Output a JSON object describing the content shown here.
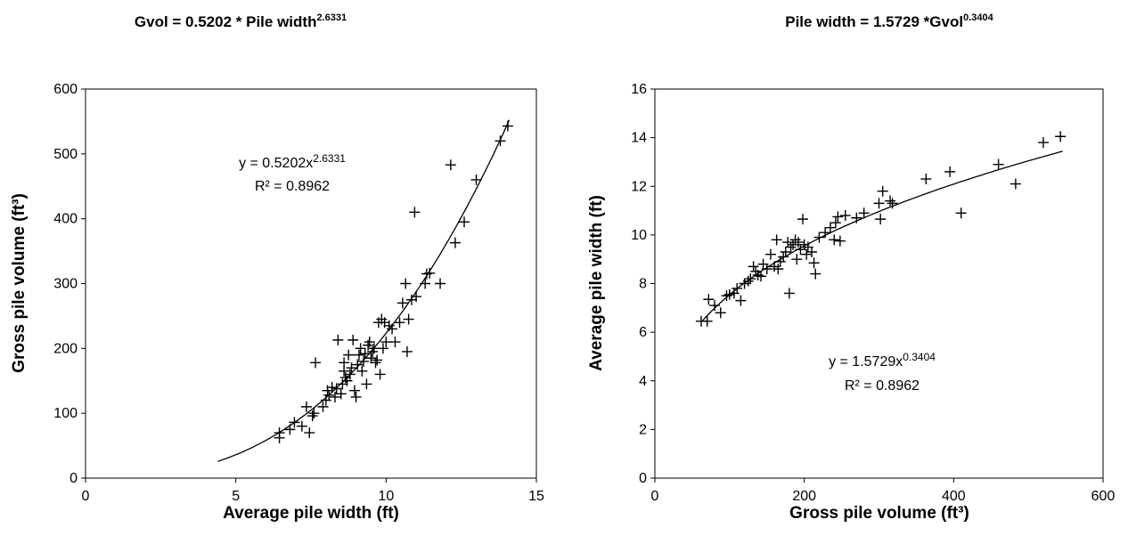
{
  "chart_data": [
    {
      "type": "scatter",
      "title_prefix": "Gvol = 0.5202 * Pile width",
      "title_exponent": "2.6331",
      "xlabel": "Average pile width (ft)",
      "ylabel": "Gross pile volume (ft³)",
      "xlim": [
        0,
        15
      ],
      "ylim": [
        0,
        600
      ],
      "xticks": [
        0,
        5,
        10,
        15
      ],
      "yticks": [
        0,
        100,
        200,
        300,
        400,
        500,
        600
      ],
      "grid": false,
      "marker": "+",
      "equation_text": "y = 0.5202x",
      "equation_exponent": "2.6331",
      "r2_text": "R² = 0.8962",
      "trendline": {
        "form": "power",
        "a": 0.5202,
        "b": 2.6331,
        "x_range": [
          4.4,
          14.1
        ]
      },
      "points": [
        [
          6.45,
          62
        ],
        [
          6.45,
          70
        ],
        [
          6.8,
          75
        ],
        [
          6.95,
          86
        ],
        [
          7.2,
          80
        ],
        [
          7.35,
          110
        ],
        [
          7.45,
          70
        ],
        [
          7.55,
          96
        ],
        [
          7.6,
          100
        ],
        [
          7.65,
          178
        ],
        [
          7.9,
          110
        ],
        [
          8.0,
          120
        ],
        [
          8.05,
          135
        ],
        [
          8.1,
          128
        ],
        [
          8.2,
          140
        ],
        [
          8.3,
          125
        ],
        [
          8.35,
          138
        ],
        [
          8.4,
          213
        ],
        [
          8.5,
          130
        ],
        [
          8.55,
          145
        ],
        [
          8.6,
          165
        ],
        [
          8.6,
          178
        ],
        [
          8.65,
          155
        ],
        [
          8.7,
          150
        ],
        [
          8.75,
          190
        ],
        [
          8.8,
          160
        ],
        [
          8.85,
          170
        ],
        [
          8.9,
          213
        ],
        [
          8.95,
          135
        ],
        [
          9.0,
          125
        ],
        [
          9.05,
          175
        ],
        [
          9.1,
          190
        ],
        [
          9.15,
          200
        ],
        [
          9.2,
          165
        ],
        [
          9.25,
          180
        ],
        [
          9.3,
          192
        ],
        [
          9.35,
          145
        ],
        [
          9.4,
          205
        ],
        [
          9.45,
          210
        ],
        [
          9.5,
          185
        ],
        [
          9.55,
          195
        ],
        [
          9.6,
          200
        ],
        [
          9.65,
          178
        ],
        [
          9.7,
          182
        ],
        [
          9.75,
          240
        ],
        [
          9.8,
          160
        ],
        [
          9.85,
          245
        ],
        [
          9.9,
          200
        ],
        [
          9.95,
          240
        ],
        [
          10.0,
          210
        ],
        [
          10.1,
          235
        ],
        [
          10.2,
          230
        ],
        [
          10.3,
          210
        ],
        [
          10.45,
          240
        ],
        [
          10.55,
          270
        ],
        [
          10.65,
          300
        ],
        [
          10.7,
          195
        ],
        [
          10.75,
          245
        ],
        [
          10.85,
          275
        ],
        [
          10.95,
          410
        ],
        [
          11.0,
          280
        ],
        [
          11.3,
          300
        ],
        [
          11.35,
          315
        ],
        [
          11.45,
          316
        ],
        [
          11.8,
          300
        ],
        [
          12.15,
          483
        ],
        [
          12.3,
          363
        ],
        [
          12.6,
          395
        ],
        [
          13.0,
          460
        ],
        [
          13.8,
          520
        ],
        [
          14.05,
          543
        ]
      ]
    },
    {
      "type": "scatter",
      "title_prefix": "Pile width = 1.5729 *Gvol",
      "title_exponent": "0.3404",
      "xlabel": "Gross pile volume (ft³)",
      "ylabel": "Average pile width (ft)",
      "xlim": [
        0,
        600
      ],
      "ylim": [
        0,
        16
      ],
      "xticks": [
        0,
        200,
        400,
        600
      ],
      "yticks": [
        0,
        2,
        4,
        6,
        8,
        10,
        12,
        14,
        16
      ],
      "grid": false,
      "marker": "+",
      "equation_text": "y = 1.5729x",
      "equation_exponent": "0.3404",
      "r2_text": "R² = 0.8962",
      "trendline": {
        "form": "power",
        "a": 1.5729,
        "b": 0.3404,
        "x_range": [
          62,
          546
        ]
      },
      "points": [
        [
          62,
          6.45
        ],
        [
          70,
          6.45
        ],
        [
          72,
          7.35
        ],
        [
          80,
          7.1
        ],
        [
          88,
          6.8
        ],
        [
          96,
          7.5
        ],
        [
          100,
          7.55
        ],
        [
          106,
          7.6
        ],
        [
          110,
          7.8
        ],
        [
          115,
          7.3
        ],
        [
          120,
          8.0
        ],
        [
          125,
          8.1
        ],
        [
          128,
          8.2
        ],
        [
          132,
          8.7
        ],
        [
          135,
          8.5
        ],
        [
          138,
          8.35
        ],
        [
          142,
          8.3
        ],
        [
          145,
          8.8
        ],
        [
          150,
          8.6
        ],
        [
          155,
          9.2
        ],
        [
          160,
          8.7
        ],
        [
          163,
          9.8
        ],
        [
          165,
          8.6
        ],
        [
          168,
          8.9
        ],
        [
          172,
          9.1
        ],
        [
          175,
          9.3
        ],
        [
          178,
          9.7
        ],
        [
          180,
          7.6
        ],
        [
          182,
          9.5
        ],
        [
          185,
          9.6
        ],
        [
          188,
          9.8
        ],
        [
          190,
          9.0
        ],
        [
          192,
          9.7
        ],
        [
          195,
          9.4
        ],
        [
          198,
          10.65
        ],
        [
          200,
          9.6
        ],
        [
          203,
          9.2
        ],
        [
          205,
          9.5
        ],
        [
          210,
          9.3
        ],
        [
          213,
          8.85
        ],
        [
          215,
          8.4
        ],
        [
          220,
          9.9
        ],
        [
          228,
          10.1
        ],
        [
          235,
          10.3
        ],
        [
          240,
          9.8
        ],
        [
          242,
          10.5
        ],
        [
          245,
          10.75
        ],
        [
          248,
          9.75
        ],
        [
          255,
          10.8
        ],
        [
          270,
          10.7
        ],
        [
          280,
          10.9
        ],
        [
          300,
          11.3
        ],
        [
          302,
          10.65
        ],
        [
          305,
          11.8
        ],
        [
          315,
          11.4
        ],
        [
          318,
          11.3
        ],
        [
          363,
          12.3
        ],
        [
          395,
          12.6
        ],
        [
          410,
          10.9
        ],
        [
          460,
          12.9
        ],
        [
          483,
          12.1
        ],
        [
          520,
          13.8
        ],
        [
          543,
          14.05
        ]
      ]
    }
  ]
}
